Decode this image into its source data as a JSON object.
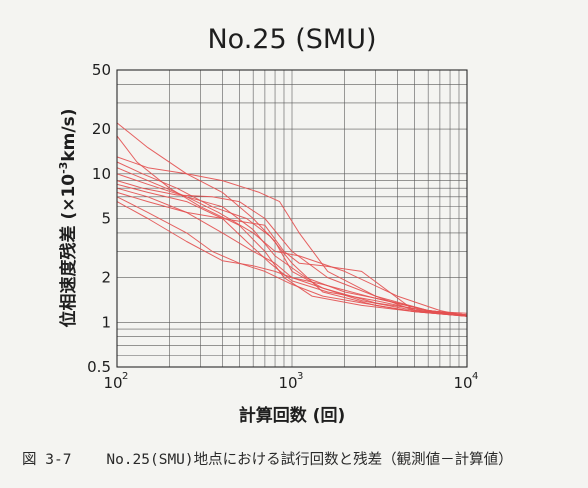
{
  "figure": {
    "caption_number": "図 3-7",
    "caption_text": "No.25(SMU)地点における試行回数と残差（観測値－計算値）"
  },
  "colors": {
    "series": "#e35050",
    "grid": "#5a5a5a",
    "axis": "#2a2a2a"
  },
  "chart_data": {
    "type": "line",
    "title": "No.25 (SMU)",
    "xlabel": "計算回数 (回)",
    "ylabel_prefix": "位相速度残差 (×10",
    "ylabel_exp": "-3",
    "ylabel_suffix": "km/s)",
    "xscale": "log",
    "yscale": "log",
    "xlim": [
      100,
      10000
    ],
    "ylim": [
      0.5,
      50
    ],
    "grid": true,
    "x_ticks": [
      {
        "value": 100,
        "base": "10",
        "exp": "2"
      },
      {
        "value": 1000,
        "base": "10",
        "exp": "3"
      },
      {
        "value": 10000,
        "base": "10",
        "exp": "4"
      }
    ],
    "y_ticks": [
      {
        "value": 0.5,
        "label": "0.5"
      },
      {
        "value": 1,
        "label": "1"
      },
      {
        "value": 2,
        "label": "2"
      },
      {
        "value": 5,
        "label": "5"
      },
      {
        "value": 10,
        "label": "10"
      },
      {
        "value": 20,
        "label": "20"
      },
      {
        "value": 50,
        "label": "50"
      }
    ],
    "series": [
      {
        "x": [
          100,
          150,
          250,
          400,
          600,
          800,
          1000,
          1500,
          3000,
          6000,
          10000
        ],
        "y": [
          22,
          15,
          10,
          7.5,
          5,
          3.5,
          2.2,
          1.7,
          1.35,
          1.2,
          1.12
        ]
      },
      {
        "x": [
          100,
          130,
          200,
          300,
          500,
          700,
          900,
          1300,
          2500,
          5000,
          10000
        ],
        "y": [
          18,
          12,
          8,
          6,
          4.5,
          3,
          2,
          1.5,
          1.3,
          1.18,
          1.1
        ]
      },
      {
        "x": [
          100,
          150,
          250,
          400,
          650,
          850,
          1100,
          1600,
          3000,
          6000,
          10000
        ],
        "y": [
          13,
          11,
          10,
          9,
          7.5,
          6.5,
          4,
          2.2,
          1.5,
          1.2,
          1.12
        ]
      },
      {
        "x": [
          100,
          140,
          220,
          350,
          550,
          750,
          1000,
          1500,
          3000,
          5000,
          10000
        ],
        "y": [
          12,
          10,
          8,
          6,
          5,
          3.8,
          2.5,
          1.6,
          1.3,
          1.18,
          1.1
        ]
      },
      {
        "x": [
          100,
          150,
          250,
          380,
          600,
          800,
          1100,
          2000,
          4000,
          7000,
          10000
        ],
        "y": [
          11,
          9,
          7,
          5.5,
          4,
          3,
          2.8,
          2.2,
          1.5,
          1.2,
          1.1
        ]
      },
      {
        "x": [
          100,
          150,
          250,
          400,
          600,
          800,
          1200,
          2000,
          3500,
          6000,
          10000
        ],
        "y": [
          10,
          8.5,
          7,
          6,
          4.2,
          2.8,
          2,
          1.6,
          1.4,
          1.2,
          1.12
        ]
      },
      {
        "x": [
          100,
          140,
          220,
          350,
          500,
          700,
          1000,
          1600,
          3000,
          5000,
          10000
        ],
        "y": [
          9,
          8,
          7.2,
          7,
          6.5,
          5,
          3,
          2,
          1.5,
          1.2,
          1.15
        ]
      },
      {
        "x": [
          100,
          150,
          250,
          400,
          550,
          750,
          1000,
          1600,
          3000,
          5500,
          10000
        ],
        "y": [
          8.5,
          7.5,
          6.5,
          5,
          3.5,
          2.5,
          1.9,
          1.6,
          1.4,
          1.2,
          1.1
        ]
      },
      {
        "x": [
          100,
          150,
          250,
          400,
          600,
          800,
          1000,
          1500,
          2500,
          5000,
          10000
        ],
        "y": [
          8,
          7,
          5.5,
          4,
          3,
          2.5,
          2,
          1.7,
          1.4,
          1.2,
          1.12
        ]
      },
      {
        "x": [
          100,
          150,
          250,
          400,
          700,
          900,
          1100,
          1500,
          2500,
          5000,
          10000
        ],
        "y": [
          7.5,
          6.5,
          5.5,
          5,
          4.5,
          3,
          2.5,
          2.4,
          2.2,
          1.2,
          1.1
        ]
      },
      {
        "x": [
          100,
          150,
          250,
          350,
          500,
          700,
          1000,
          1500,
          2500,
          5000,
          10000
        ],
        "y": [
          7,
          5.5,
          4,
          3,
          2.5,
          2.2,
          1.8,
          1.5,
          1.35,
          1.18,
          1.1
        ]
      },
      {
        "x": [
          100,
          150,
          250,
          400,
          600,
          800,
          1000,
          1500,
          3000,
          6000,
          10000
        ],
        "y": [
          6.5,
          5,
          3.5,
          2.6,
          2.4,
          2.2,
          2,
          1.8,
          1.45,
          1.2,
          1.12
        ]
      }
    ]
  }
}
